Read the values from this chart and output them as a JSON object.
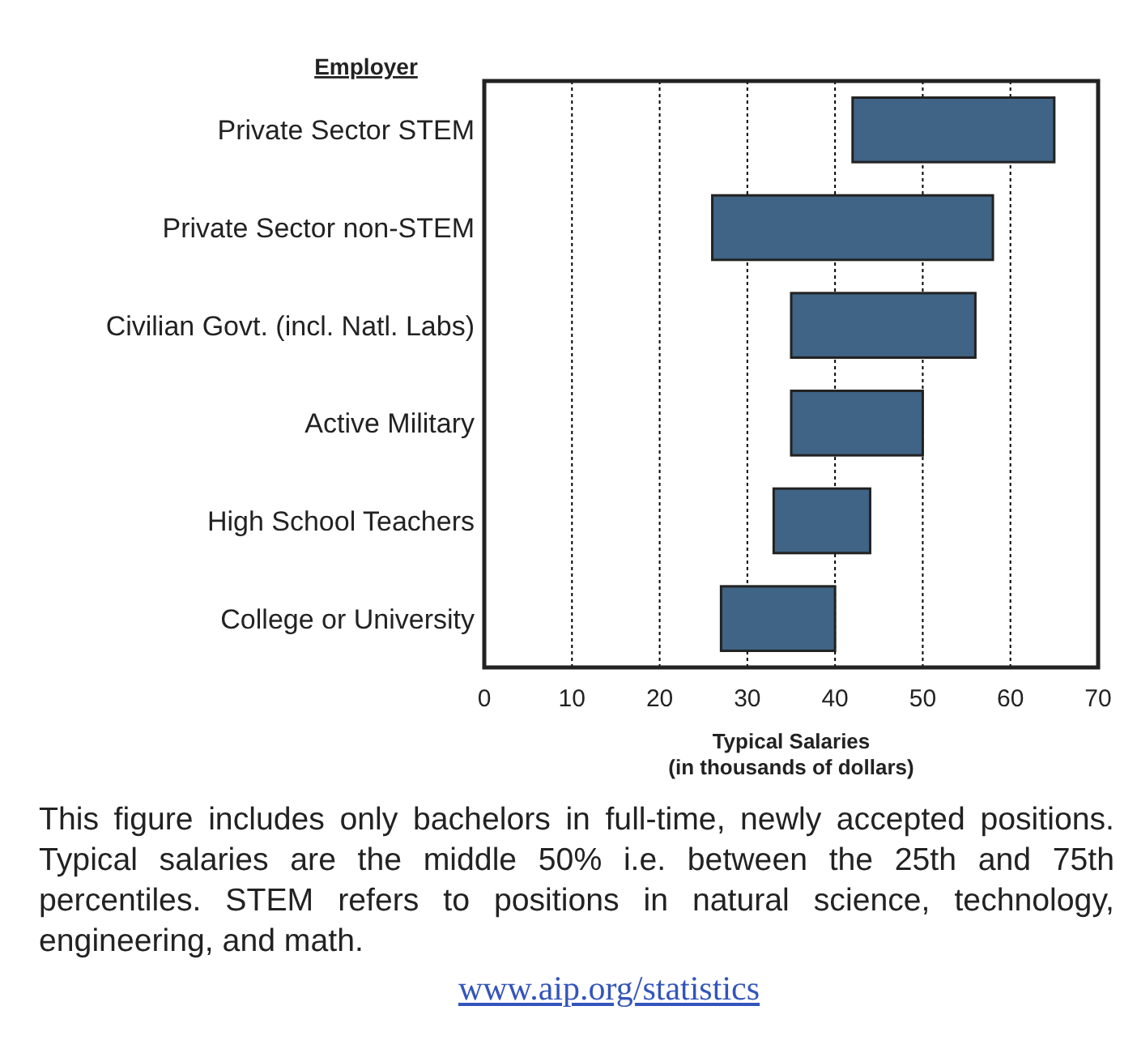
{
  "chart_data": {
    "type": "bar",
    "orientation": "horizontal",
    "ylabel": "Employer",
    "xlabel": "Typical Salaries\n(in thousands of dollars)",
    "categories": [
      "Private Sector STEM",
      "Private Sector non-STEM",
      "Civilian Govt. (incl. Natl. Labs)",
      "Active Military",
      "High School Teachers",
      "College or University"
    ],
    "base": [
      42,
      26,
      35,
      35,
      33,
      27
    ],
    "values": [
      23,
      32,
      21,
      15,
      11,
      13
    ],
    "color": "#3f6485",
    "xlim": [
      0,
      70
    ],
    "xticks": [
      0,
      10,
      20,
      30,
      40,
      50,
      60,
      70
    ],
    "grid": "x",
    "annotations": [
      "This figure includes only bachelors in full-time, newly accepted positions. Typical salaries are the middle 50% i.e. between the 25th and 75th percentiles. STEM refers to positions in natural science, technology, engineering, and math.",
      "www.aip.org/statistics"
    ]
  }
}
